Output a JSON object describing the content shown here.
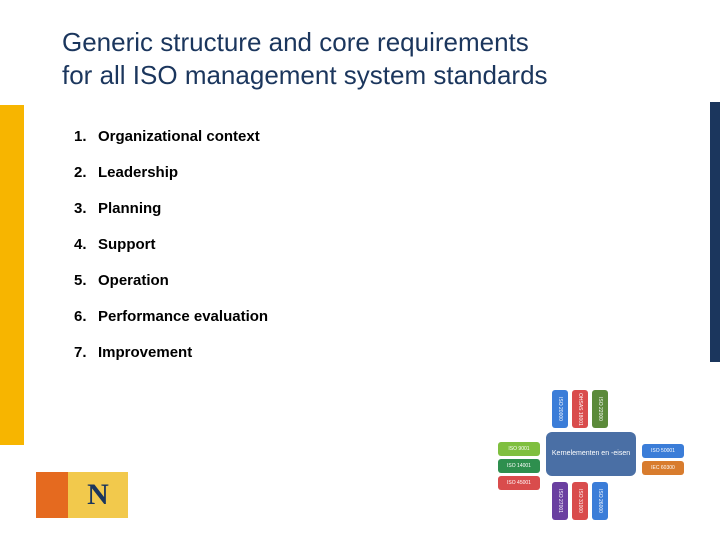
{
  "title_line1": "Generic structure and core requirements",
  "title_line2": "for all ISO management system standards",
  "accent_orange": "#f7b500",
  "accent_navy": "#1b365d",
  "sidebar_left_height": 340,
  "sidebar_right_height": 260,
  "items": [
    {
      "n": "1.",
      "label": "Organizational context"
    },
    {
      "n": "2.",
      "label": "Leadership"
    },
    {
      "n": "3.",
      "label": "Planning"
    },
    {
      "n": "4.",
      "label": "Support"
    },
    {
      "n": "5.",
      "label": "Operation"
    },
    {
      "n": "6.",
      "label": "Performance evaluation"
    },
    {
      "n": "7.",
      "label": "Improvement"
    }
  ],
  "logo": {
    "letter": "N",
    "orange": "#e56a1f",
    "yellow": "#f2c94c",
    "navy": "#1b365d"
  },
  "diagram": {
    "center_label": "Kernelementen en -eisen",
    "center_bg": "#4a6fa5",
    "top": [
      {
        "label": "ISO 20000",
        "bg": "#3b7dd8"
      },
      {
        "label": "OHSAS 18001",
        "bg": "#d94c4c"
      },
      {
        "label": "ISO 22000",
        "bg": "#5b8a3a"
      }
    ],
    "left": [
      {
        "label": "ISO 9001",
        "bg": "#7fbf3f"
      },
      {
        "label": "ISO 14001",
        "bg": "#2e8f4e"
      },
      {
        "label": "ISO 45001",
        "bg": "#d94c4c"
      }
    ],
    "right": [
      {
        "label": "ISO 50001",
        "bg": "#3b7dd8"
      },
      {
        "label": "IEC 60300",
        "bg": "#d87c2e"
      }
    ],
    "bottom": [
      {
        "label": "ISO 27001",
        "bg": "#6a3fa0"
      },
      {
        "label": "ISO 31000",
        "bg": "#d94c4c"
      },
      {
        "label": "ISO 26000",
        "bg": "#3b7dd8"
      }
    ]
  }
}
